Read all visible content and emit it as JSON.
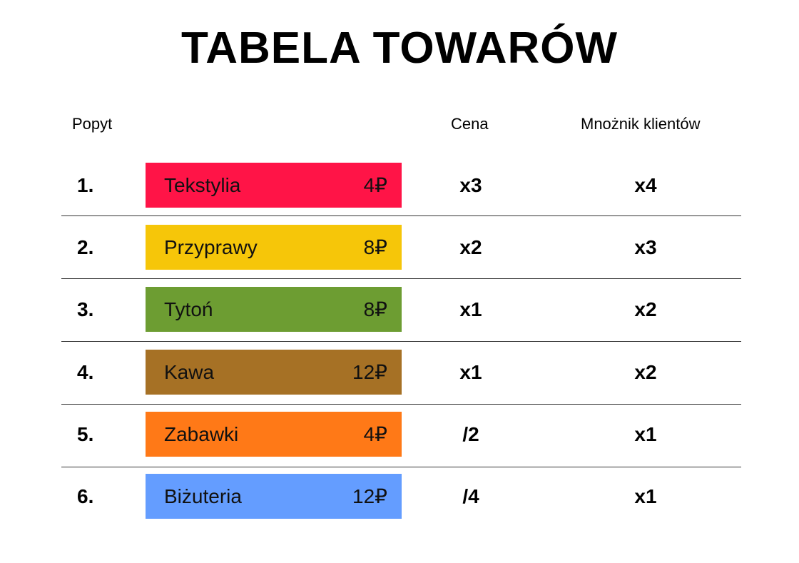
{
  "title": "TABELA TOWARÓW",
  "headers": {
    "popyt": "Popyt",
    "cena": "Cena",
    "mnoznik": "Mnożnik klientów"
  },
  "rows": [
    {
      "rank": "1.",
      "name": "Tekstylia",
      "price": "4₽",
      "color": "#FF1447",
      "cena": "x3",
      "mnoznik": "x4"
    },
    {
      "rank": "2.",
      "name": "Przyprawy",
      "price": "8₽",
      "color": "#F6C609",
      "cena": "x2",
      "mnoznik": "x3"
    },
    {
      "rank": "3.",
      "name": "Tytoń",
      "price": "8₽",
      "color": "#6D9D32",
      "cena": "x1",
      "mnoznik": "x2"
    },
    {
      "rank": "4.",
      "name": "Kawa",
      "price": "12₽",
      "color": "#A67125",
      "cena": "x1",
      "mnoznik": "x2"
    },
    {
      "rank": "5.",
      "name": "Zabawki",
      "price": "4₽",
      "color": "#FF7917",
      "cena": "/2",
      "mnoznik": "x1"
    },
    {
      "rank": "6.",
      "name": "Biżuteria",
      "price": "12₽",
      "color": "#649DFF",
      "cena": "/4",
      "mnoznik": "x1"
    }
  ]
}
